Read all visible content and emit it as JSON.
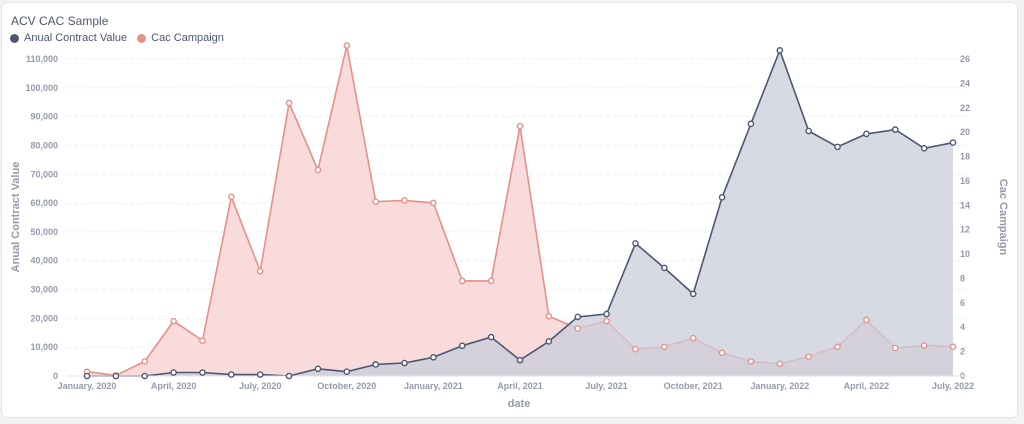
{
  "card": {
    "title": "ACV CAC Sample"
  },
  "colors": {
    "acv": "#4c5773",
    "acv_fill": "#c9ced9",
    "cac": "#e5918a",
    "cac_fill": "#f6cfcd",
    "grid": "#eceef2",
    "axis_text": "#949aab"
  },
  "chart_data": {
    "type": "area",
    "title": "ACV CAC Sample",
    "xlabel": "date",
    "ylabel_left": "Anual Contract Value",
    "ylabel_right": "Cac Campaign",
    "legend_position": "top-left",
    "x": [
      "2020-01",
      "2020-02",
      "2020-03",
      "2020-04",
      "2020-05",
      "2020-06",
      "2020-07",
      "2020-08",
      "2020-09",
      "2020-10",
      "2020-11",
      "2020-12",
      "2021-01",
      "2021-02",
      "2021-03",
      "2021-04",
      "2021-05",
      "2021-06",
      "2021-07",
      "2021-08",
      "2021-09",
      "2021-10",
      "2021-11",
      "2021-12",
      "2022-01",
      "2022-02",
      "2022-03",
      "2022-04",
      "2022-05",
      "2022-06",
      "2022-07"
    ],
    "x_tick_labels": [
      "January, 2020",
      "April, 2020",
      "July, 2020",
      "October, 2020",
      "January, 2021",
      "April, 2021",
      "July, 2021",
      "October, 2021",
      "January, 2022",
      "April, 2022",
      "July, 2022"
    ],
    "x_tick_indices": [
      0,
      3,
      6,
      9,
      12,
      15,
      18,
      21,
      24,
      27,
      30
    ],
    "y_left": {
      "range": [
        0,
        110000
      ],
      "ticks": [
        "0",
        "10,000",
        "20,000",
        "30,000",
        "40,000",
        "50,000",
        "60,000",
        "70,000",
        "80,000",
        "90,000",
        "100,000",
        "110,000"
      ]
    },
    "y_right": {
      "range": [
        0,
        26
      ],
      "ticks": [
        "0",
        "2",
        "4",
        "6",
        "8",
        "10",
        "12",
        "14",
        "16",
        "18",
        "20",
        "22",
        "24",
        "26"
      ]
    },
    "series": [
      {
        "name": "Anual Contract Value",
        "axis": "left",
        "values": [
          0,
          0,
          0,
          1200,
          1200,
          500,
          500,
          0,
          2500,
          1500,
          4000,
          4500,
          6500,
          10500,
          13500,
          5500,
          12000,
          20500,
          21500,
          46000,
          37500,
          28500,
          62000,
          87500,
          113000,
          85000,
          79500,
          84000,
          85500,
          79000,
          81000
        ]
      },
      {
        "name": "Cac Campaign",
        "axis": "right",
        "values": [
          0.35,
          0.05,
          1.2,
          4.5,
          2.9,
          14.7,
          8.6,
          22.4,
          16.9,
          27.1,
          14.3,
          14.4,
          14.2,
          7.8,
          7.8,
          20.5,
          4.9,
          3.9,
          4.5,
          2.2,
          2.4,
          3.1,
          1.9,
          1.2,
          1.0,
          1.6,
          2.4,
          4.6,
          2.3,
          2.5,
          2.4
        ]
      }
    ]
  }
}
